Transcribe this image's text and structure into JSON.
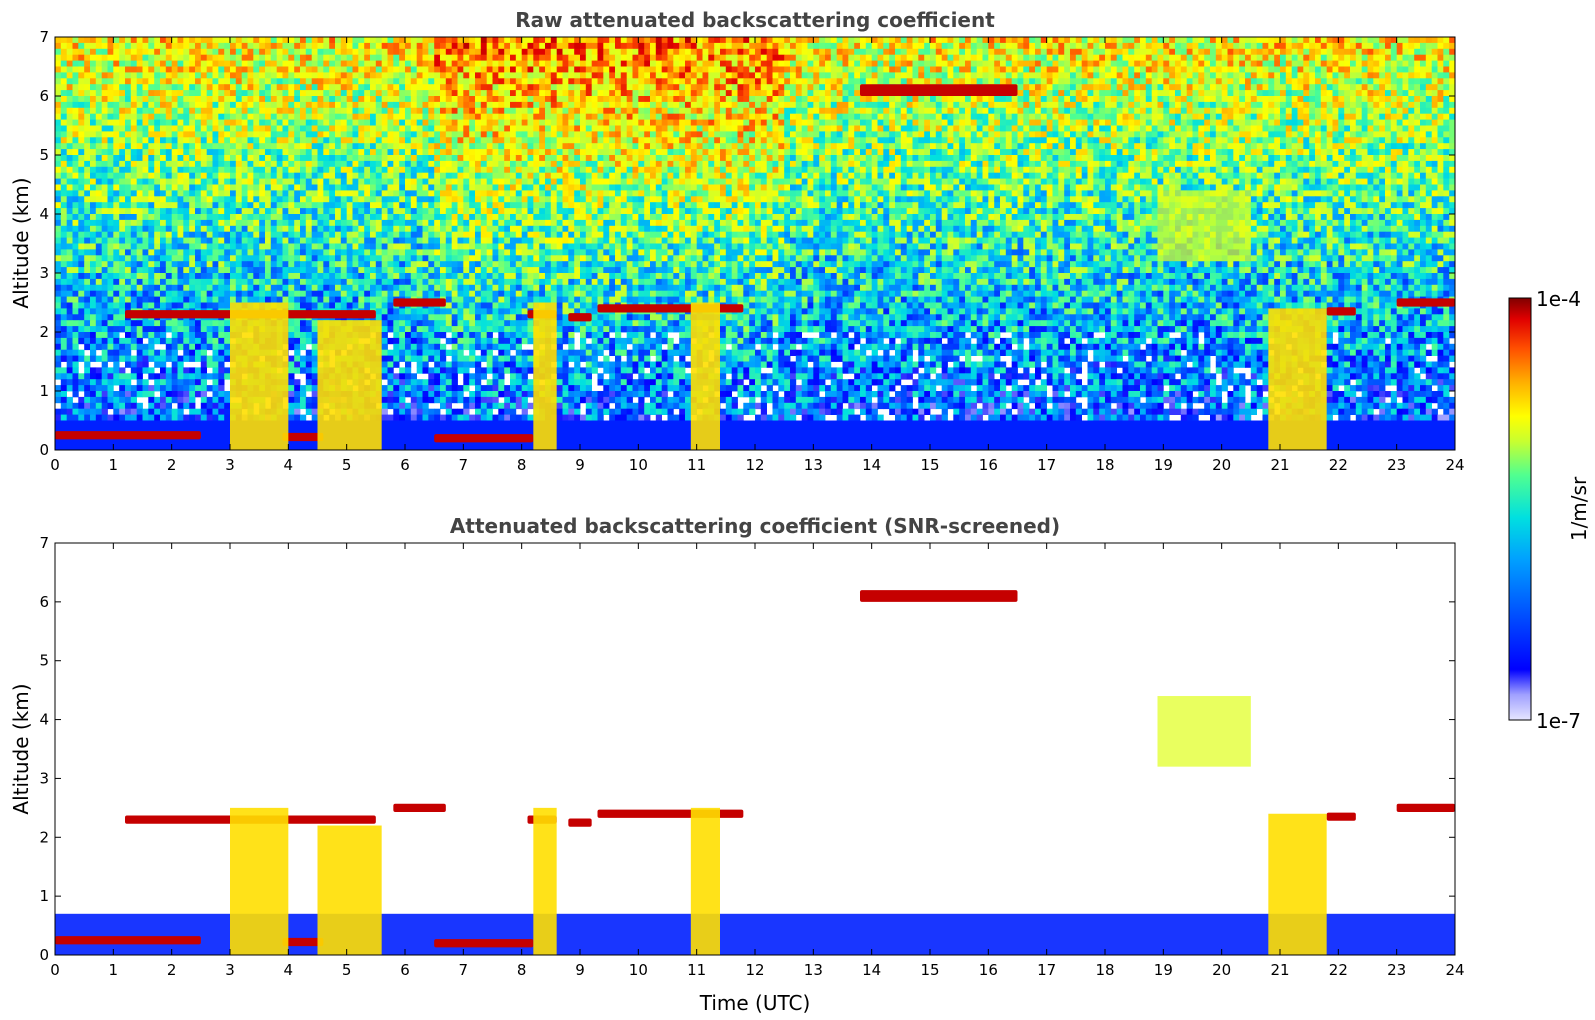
{
  "chart_data": [
    {
      "type": "heatmap",
      "title": "Raw attenuated backscattering coefficient",
      "xlabel": "",
      "ylabel": "Altitude (km)",
      "xlim": [
        0,
        24
      ],
      "ylim": [
        0,
        7
      ],
      "x_ticks": [
        0,
        1,
        2,
        3,
        4,
        5,
        6,
        7,
        8,
        9,
        10,
        11,
        12,
        13,
        14,
        15,
        16,
        17,
        18,
        19,
        20,
        21,
        22,
        23,
        24
      ],
      "y_ticks": [
        0,
        1,
        2,
        3,
        4,
        5,
        6,
        7
      ],
      "features": [
        {
          "kind": "boundary_layer",
          "t_start": 0,
          "t_end": 24,
          "top_km": 0.5
        },
        {
          "kind": "low_cloud",
          "t_start": 0,
          "t_end": 2.5,
          "alt_km": 0.25
        },
        {
          "kind": "low_cloud",
          "t_start": 3.9,
          "t_end": 4.6,
          "alt_km": 0.22
        },
        {
          "kind": "low_cloud",
          "t_start": 6.5,
          "t_end": 8.2,
          "alt_km": 0.2
        },
        {
          "kind": "cloud_layer",
          "t_start": 1.2,
          "t_end": 5.5,
          "alt_km": 2.3
        },
        {
          "kind": "cloud_layer",
          "t_start": 5.8,
          "t_end": 6.7,
          "alt_km": 2.5
        },
        {
          "kind": "cloud_layer",
          "t_start": 8.1,
          "t_end": 8.6,
          "alt_km": 2.3
        },
        {
          "kind": "cloud_layer",
          "t_start": 8.8,
          "t_end": 9.2,
          "alt_km": 2.25
        },
        {
          "kind": "cloud_layer",
          "t_start": 9.3,
          "t_end": 11.8,
          "alt_km": 2.4
        },
        {
          "kind": "cloud_layer",
          "t_start": 21.8,
          "t_end": 22.3,
          "alt_km": 2.35
        },
        {
          "kind": "cloud_layer",
          "t_start": 23.0,
          "t_end": 24.0,
          "alt_km": 2.5
        },
        {
          "kind": "precip_column",
          "t_start": 3.0,
          "t_end": 4.0,
          "top_km": 2.5
        },
        {
          "kind": "precip_column",
          "t_start": 4.5,
          "t_end": 5.6,
          "top_km": 2.2
        },
        {
          "kind": "precip_column",
          "t_start": 8.2,
          "t_end": 8.6,
          "top_km": 2.5
        },
        {
          "kind": "precip_column",
          "t_start": 10.9,
          "t_end": 11.4,
          "top_km": 2.5
        },
        {
          "kind": "precip_column",
          "t_start": 20.8,
          "t_end": 21.8,
          "top_km": 2.4
        },
        {
          "kind": "mid_level_cloud",
          "t_start": 13.8,
          "t_end": 16.5,
          "alt_km": 6.1
        },
        {
          "kind": "virga",
          "t_start": 18.9,
          "t_end": 20.5,
          "alt_km": 3.8
        },
        {
          "kind": "noisy_sky",
          "t_start": 0,
          "t_end": 24
        }
      ]
    },
    {
      "type": "heatmap",
      "title": "Attenuated backscattering coefficient (SNR-screened)",
      "xlabel": "Time (UTC)",
      "ylabel": "Altitude (km)",
      "xlim": [
        0,
        24
      ],
      "ylim": [
        0,
        7
      ],
      "x_ticks": [
        0,
        1,
        2,
        3,
        4,
        5,
        6,
        7,
        8,
        9,
        10,
        11,
        12,
        13,
        14,
        15,
        16,
        17,
        18,
        19,
        20,
        21,
        22,
        23,
        24
      ],
      "y_ticks": [
        0,
        1,
        2,
        3,
        4,
        5,
        6,
        7
      ],
      "features": [
        {
          "kind": "boundary_layer",
          "t_start": 0,
          "t_end": 24,
          "top_km": 0.7
        },
        {
          "kind": "low_cloud",
          "t_start": 0,
          "t_end": 2.5,
          "alt_km": 0.25
        },
        {
          "kind": "low_cloud",
          "t_start": 3.9,
          "t_end": 4.6,
          "alt_km": 0.22
        },
        {
          "kind": "low_cloud",
          "t_start": 6.5,
          "t_end": 8.2,
          "alt_km": 0.2
        },
        {
          "kind": "cloud_layer",
          "t_start": 1.2,
          "t_end": 5.5,
          "alt_km": 2.3
        },
        {
          "kind": "cloud_layer",
          "t_start": 5.8,
          "t_end": 6.7,
          "alt_km": 2.5
        },
        {
          "kind": "cloud_layer",
          "t_start": 8.1,
          "t_end": 8.6,
          "alt_km": 2.3
        },
        {
          "kind": "cloud_layer",
          "t_start": 8.8,
          "t_end": 9.2,
          "alt_km": 2.25
        },
        {
          "kind": "cloud_layer",
          "t_start": 9.3,
          "t_end": 11.8,
          "alt_km": 2.4
        },
        {
          "kind": "cloud_layer",
          "t_start": 21.8,
          "t_end": 22.3,
          "alt_km": 2.35
        },
        {
          "kind": "cloud_layer",
          "t_start": 23.0,
          "t_end": 24.0,
          "alt_km": 2.5
        },
        {
          "kind": "precip_column",
          "t_start": 3.0,
          "t_end": 4.0,
          "top_km": 2.5
        },
        {
          "kind": "precip_column",
          "t_start": 4.5,
          "t_end": 5.6,
          "top_km": 2.2
        },
        {
          "kind": "precip_column",
          "t_start": 8.2,
          "t_end": 8.6,
          "top_km": 2.5
        },
        {
          "kind": "precip_column",
          "t_start": 10.9,
          "t_end": 11.4,
          "top_km": 2.5
        },
        {
          "kind": "precip_column",
          "t_start": 20.8,
          "t_end": 21.8,
          "top_km": 2.4
        },
        {
          "kind": "mid_level_cloud",
          "t_start": 13.8,
          "t_end": 16.5,
          "alt_km": 6.1
        },
        {
          "kind": "virga",
          "t_start": 18.9,
          "t_end": 20.5,
          "alt_km": 3.8
        }
      ]
    }
  ],
  "colorbar": {
    "label": "1/m/sr",
    "max_label": "1e-4",
    "min_label": "1e-7",
    "scale": "log",
    "range": [
      1e-07,
      0.0001
    ],
    "colormap": [
      "#e6e6ff",
      "#a0a0ff",
      "#0000ff",
      "#0050ff",
      "#00a0ff",
      "#00e0e0",
      "#50ff90",
      "#c8ff30",
      "#ffff00",
      "#ffb000",
      "#ff5000",
      "#e00000",
      "#800000"
    ]
  }
}
